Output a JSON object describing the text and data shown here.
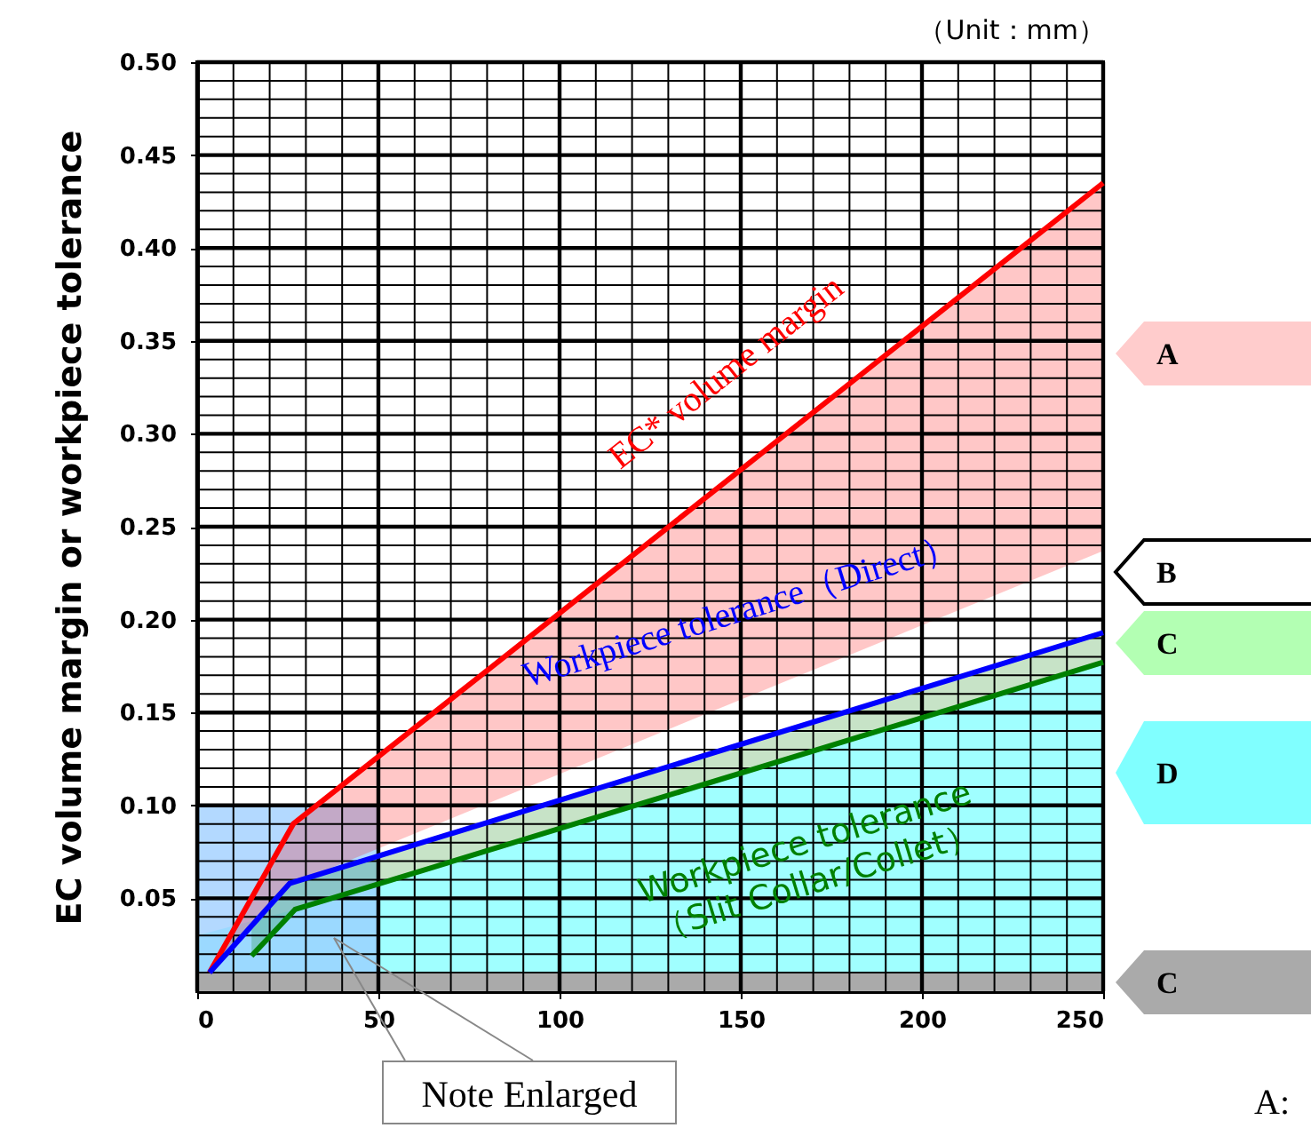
{
  "chart_data": {
    "type": "line",
    "ylabel": "EC volume margin or workpiece tolerance",
    "xlim": [
      0,
      250
    ],
    "xticks": [
      0,
      50,
      100,
      150,
      200,
      250
    ],
    "ylim": [
      0,
      0.5
    ],
    "yticks": [
      {
        "value": 0.05,
        "label": "0.05"
      },
      {
        "value": 0.1,
        "label": "0.10"
      },
      {
        "value": 0.15,
        "label": "0.15"
      },
      {
        "value": 0.2,
        "label": "0.20"
      },
      {
        "value": 0.25,
        "label": "0.25"
      },
      {
        "value": 0.3,
        "label": "0.30"
      },
      {
        "value": 0.35,
        "label": "0.35"
      },
      {
        "value": 0.4,
        "label": "0.40"
      },
      {
        "value": 0.45,
        "label": "0.45"
      },
      {
        "value": 0.5,
        "label": "0.50"
      }
    ],
    "grid": true,
    "series": [
      {
        "type": "area",
        "color": "#80ffff",
        "x": [
          0,
          27,
          250
        ],
        "values": [
          0.03,
          0.044,
          0.177
        ]
      },
      {
        "type": "area",
        "color": "#99ccff",
        "x": [
          0,
          50
        ],
        "values": [
          0.1,
          0.1
        ]
      },
      {
        "name": "EC* volume margin",
        "color": "#ff0000",
        "x": [
          3.4,
          26.5,
          250
        ],
        "values": [
          0.01,
          0.09,
          0.435
        ],
        "lower": [
          0.01,
          0.058,
          0.237
        ],
        "upper": [
          0.01,
          0.09,
          0.435
        ]
      },
      {
        "name": "Workpiece tolerance（Direct）",
        "color": "#0000ff",
        "x": [
          3.4,
          25.5,
          250
        ],
        "values": [
          0.01,
          0.058,
          0.193
        ]
      },
      {
        "name": "Workpiece tolerance\n（Slit Collar/Collet）",
        "color": "#008000",
        "x": [
          15,
          27,
          250
        ],
        "values": [
          0.019,
          0.044,
          0.177
        ],
        "lower": [
          0.019,
          0.044,
          0.177
        ],
        "upper": [
          0.035,
          0.059,
          0.193
        ]
      }
    ],
    "bands": [
      {
        "axis": "y",
        "from": 0,
        "to": 0.01,
        "color": "#aaaaaa"
      }
    ],
    "annotations": [
      "（Unit：mm）",
      "A",
      "B",
      "C",
      "D",
      "C",
      "Note Enlarged",
      "A:"
    ]
  }
}
